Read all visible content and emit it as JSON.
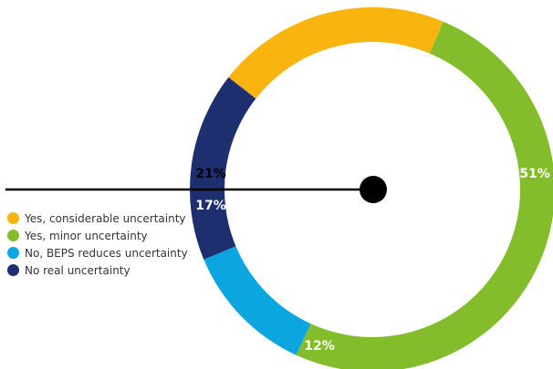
{
  "chart_data": {
    "type": "pie",
    "variant": "donut",
    "title": "",
    "series": [
      {
        "name": "Yes, considerable uncertainty",
        "value": 21,
        "label": "21%",
        "color": "#F9B410"
      },
      {
        "name": "Yes, minor uncertainty",
        "value": 51,
        "label": "51%",
        "color": "#84BD2B"
      },
      {
        "name": "No, BEPS reduces uncertainty",
        "value": 12,
        "label": "12%",
        "color": "#0BA5E0"
      },
      {
        "name": "No real uncertainty",
        "value": 17,
        "label": "17%",
        "color": "#1E2F70"
      }
    ],
    "legend_position": "left"
  }
}
